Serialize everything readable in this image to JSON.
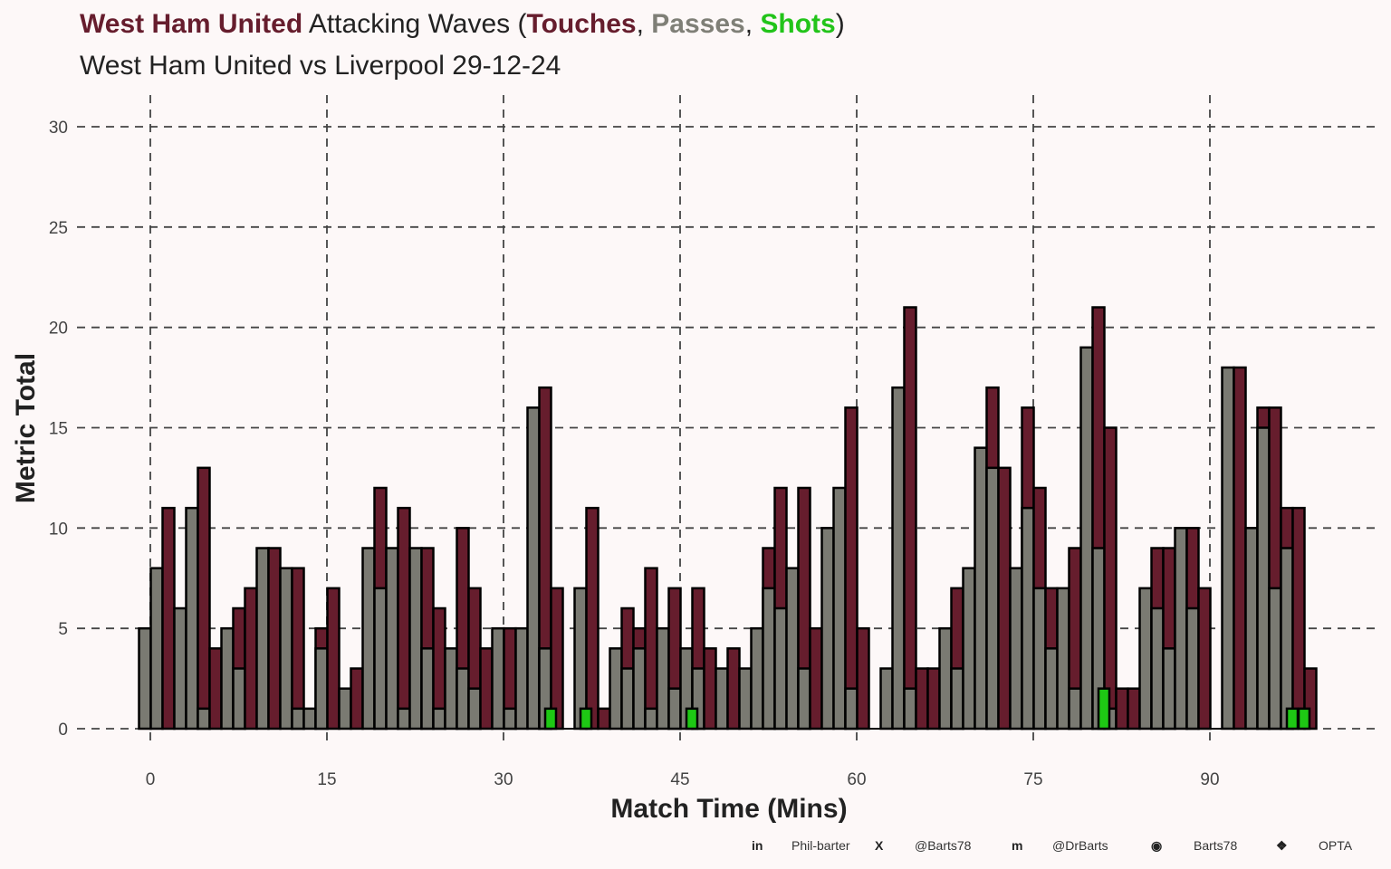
{
  "title": {
    "team": "West Ham United",
    "middle": " Attacking Waves (",
    "touches": "Touches",
    "sep1": ", ",
    "passes": "Passes",
    "sep2": ", ",
    "shots": "Shots",
    "end": ")"
  },
  "subtitle": "West Ham United vs Liverpool 29-12-24",
  "colors": {
    "touches": "#661d2d",
    "passes": "#7a7a72",
    "shots": "#1ec814",
    "team": "#661d2d",
    "background": "#fdf8f8"
  },
  "footer": [
    {
      "icon": "linkedin-icon",
      "glyph": "in",
      "text": "Phil-barter"
    },
    {
      "icon": "x-twitter-icon",
      "glyph": "X",
      "text": "@Barts78"
    },
    {
      "icon": "mastodon-icon",
      "glyph": "m",
      "text": "@DrBarts"
    },
    {
      "icon": "github-icon",
      "glyph": "◉",
      "text": "Barts78"
    },
    {
      "icon": "dropbox-icon",
      "glyph": "❖",
      "text": "OPTA"
    }
  ],
  "chart_data": {
    "type": "bar",
    "title": "West Ham United Attacking Waves (Touches, Passes, Shots)",
    "subtitle": "West Ham United vs Liverpool 29-12-24",
    "xlabel": "Match Time (Mins)",
    "ylabel": "Metric Total",
    "xlim": [
      0,
      99
    ],
    "ylim": [
      0,
      30
    ],
    "xticks": [
      "0",
      "15",
      "30",
      "45",
      "60",
      "75",
      "90"
    ],
    "yticks": [
      "0",
      "5",
      "10",
      "15",
      "20",
      "25",
      "30"
    ],
    "grid": true,
    "minutes": [
      0,
      1,
      2,
      3,
      4,
      5,
      6,
      7,
      8,
      9,
      10,
      11,
      12,
      13,
      14,
      15,
      16,
      17,
      18,
      19,
      20,
      21,
      22,
      23,
      24,
      25,
      26,
      27,
      28,
      29,
      30,
      31,
      32,
      33,
      34,
      35,
      36,
      37,
      38,
      39,
      40,
      41,
      42,
      43,
      44,
      45,
      46,
      47,
      48,
      49,
      50,
      51,
      52,
      53,
      54,
      55,
      56,
      57,
      58,
      59,
      60,
      61,
      62,
      63,
      64,
      65,
      66,
      67,
      68,
      69,
      70,
      71,
      72,
      73,
      74,
      75,
      76,
      77,
      78,
      79,
      80,
      81,
      82,
      83,
      84,
      85,
      86,
      87,
      88,
      89,
      90,
      91,
      92,
      93,
      94,
      95,
      96,
      97,
      98,
      99
    ],
    "series": [
      {
        "name": "Touches",
        "values": [
          0,
          0,
          11,
          0,
          0,
          13,
          4,
          0,
          6,
          7,
          0,
          9,
          0,
          8,
          0,
          5,
          7,
          0,
          3,
          0,
          12,
          0,
          11,
          0,
          9,
          6,
          0,
          10,
          7,
          4,
          0,
          5,
          0,
          0,
          17,
          7,
          0,
          0,
          11,
          1,
          0,
          6,
          5,
          8,
          0,
          7,
          0,
          7,
          4,
          0,
          4,
          0,
          0,
          9,
          12,
          0,
          12,
          5,
          0,
          0,
          16,
          5,
          0,
          0,
          0,
          21,
          3,
          3,
          0,
          7,
          0,
          0,
          17,
          13,
          0,
          16,
          12,
          7,
          0,
          9,
          0,
          21,
          15,
          2,
          2,
          0,
          9,
          9,
          0,
          10,
          7,
          0,
          0,
          18,
          0,
          16,
          16,
          11,
          11,
          3
        ]
      },
      {
        "name": "Passes",
        "values": [
          5,
          8,
          0,
          6,
          11,
          1,
          0,
          5,
          3,
          0,
          9,
          0,
          8,
          1,
          1,
          4,
          0,
          2,
          0,
          9,
          7,
          9,
          1,
          9,
          4,
          1,
          4,
          3,
          2,
          0,
          5,
          1,
          5,
          16,
          4,
          0,
          0,
          7,
          0,
          0,
          4,
          3,
          4,
          1,
          5,
          2,
          4,
          3,
          0,
          3,
          0,
          3,
          5,
          7,
          6,
          8,
          3,
          0,
          10,
          12,
          2,
          0,
          0,
          3,
          17,
          2,
          0,
          0,
          5,
          3,
          8,
          14,
          13,
          0,
          8,
          11,
          7,
          4,
          7,
          2,
          19,
          9,
          1,
          0,
          0,
          7,
          6,
          4,
          10,
          6,
          0,
          0,
          18,
          0,
          10,
          15,
          7,
          9,
          0,
          0
        ]
      },
      {
        "name": "Shots",
        "minutes": [
          34,
          37,
          46,
          81,
          97,
          98
        ],
        "values": [
          1,
          1,
          1,
          2,
          1,
          1
        ]
      }
    ]
  }
}
